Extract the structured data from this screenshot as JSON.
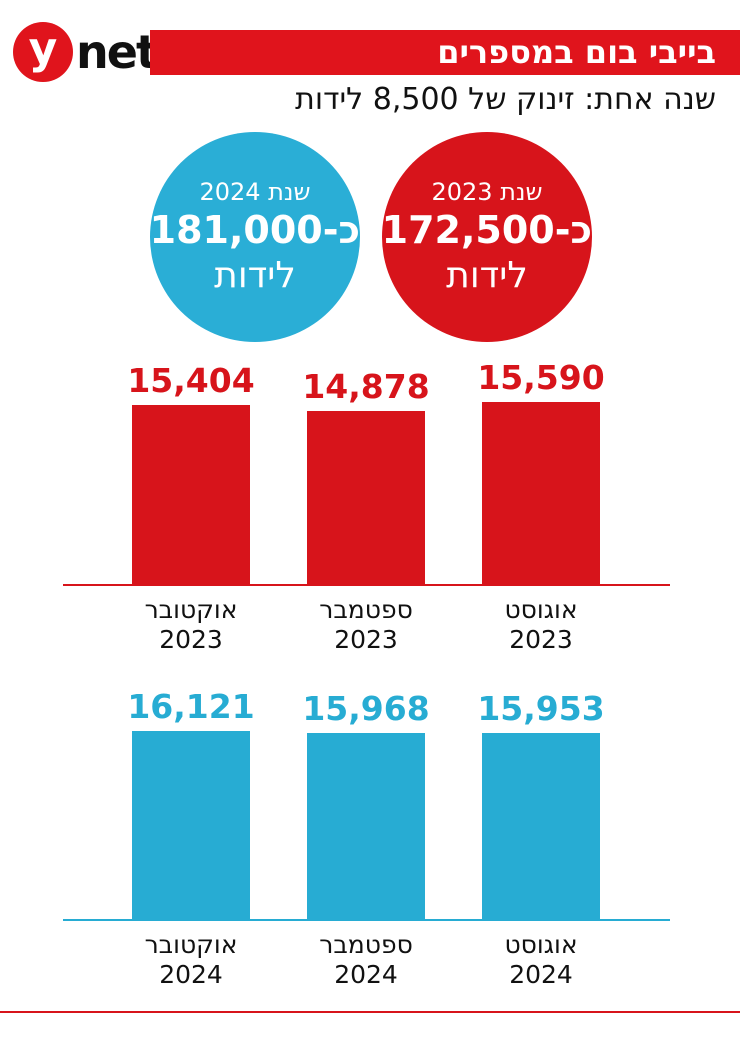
{
  "header": {
    "logo_y": "y",
    "logo_net": "net",
    "title": "בייבי בום במספרים",
    "subtitle": "שנה אחת: זינוק של 8,500 לידות"
  },
  "circles": [
    {
      "year_label": "שנת 2023",
      "amount": "כ-172,500",
      "unit": "לידות",
      "color": "#d7141b"
    },
    {
      "year_label": "שנת 2024",
      "amount": "כ-181,000",
      "unit": "לידות",
      "color": "#2aaed6"
    }
  ],
  "chart_data": [
    {
      "type": "bar",
      "categories": [
        "אוגוסט 2023",
        "ספטמבר 2023",
        "אוקטובר 2023"
      ],
      "values": [
        15590,
        14878,
        15404
      ],
      "value_labels": [
        "15,590",
        "14,878",
        "15,404"
      ],
      "color": "#d7141b",
      "ylim": [
        0,
        17500
      ]
    },
    {
      "type": "bar",
      "categories": [
        "אוגוסט 2024",
        "ספטמבר 2024",
        "אוקטובר 2024"
      ],
      "values": [
        15953,
        15968,
        16121
      ],
      "value_labels": [
        "15,953",
        "15,968",
        "16,121"
      ],
      "color": "#27acd3",
      "ylim": [
        0,
        17500
      ]
    }
  ]
}
